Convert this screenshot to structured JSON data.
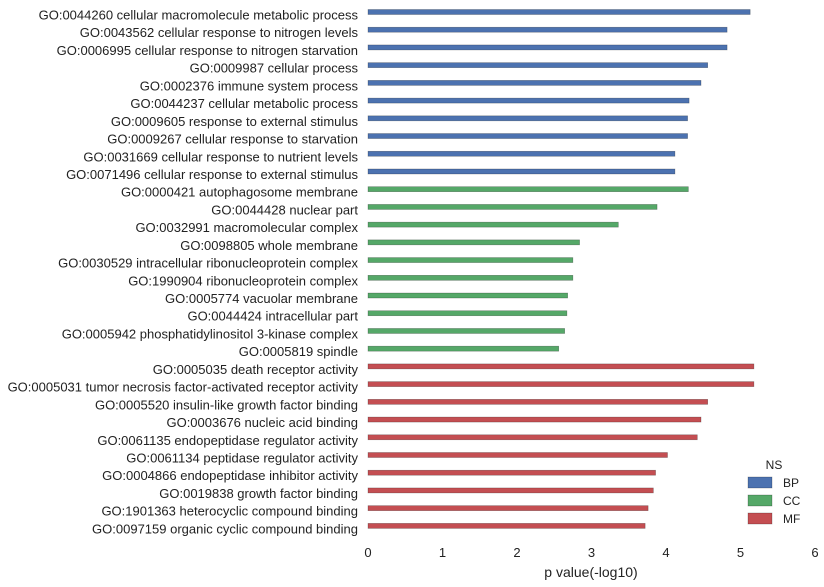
{
  "chart_data": {
    "type": "bar",
    "orientation": "horizontal",
    "xlabel": "p value(-log10)",
    "xlim": [
      0,
      6
    ],
    "xticks": [
      "0",
      "1",
      "2",
      "3",
      "4",
      "5",
      "6"
    ],
    "grid": false,
    "legend": {
      "title": "NS",
      "position": "bottom-right",
      "entries": [
        {
          "name": "BP",
          "color": "#4c72b0"
        },
        {
          "name": "CC",
          "color": "#55a868"
        },
        {
          "name": "MF",
          "color": "#c44e52"
        }
      ]
    },
    "categories": [
      "GO:0044260 cellular macromolecule metabolic process",
      "GO:0043562 cellular response to nitrogen levels",
      "GO:0006995 cellular response to nitrogen starvation",
      "GO:0009987 cellular process",
      "GO:0002376 immune system process",
      "GO:0044237 cellular metabolic process",
      "GO:0009605 response to external stimulus",
      "GO:0009267 cellular response to starvation",
      "GO:0031669 cellular response to nutrient levels",
      "GO:0071496 cellular response to external stimulus",
      "GO:0000421 autophagosome membrane",
      "GO:0044428 nuclear part",
      "GO:0032991 macromolecular complex",
      "GO:0098805 whole membrane",
      "GO:0030529 intracellular ribonucleoprotein complex",
      "GO:1990904 ribonucleoprotein complex",
      "GO:0005774 vacuolar membrane",
      "GO:0044424 intracellular part",
      "GO:0005942 phosphatidylinositol 3-kinase complex",
      "GO:0005819 spindle",
      "GO:0005035 death receptor activity",
      "GO:0005031 tumor necrosis factor-activated receptor activity",
      "GO:0005520 insulin-like growth factor binding",
      "GO:0003676 nucleic acid binding",
      "GO:0061135 endopeptidase regulator activity",
      "GO:0061134 peptidase regulator activity",
      "GO:0004866 endopeptidase inhibitor activity",
      "GO:0019838 growth factor binding",
      "GO:1901363 heterocyclic compound binding",
      "GO:0097159 organic cyclic compound binding"
    ],
    "values": [
      5.13,
      4.82,
      4.82,
      4.56,
      4.47,
      4.31,
      4.29,
      4.29,
      4.12,
      4.12,
      4.3,
      3.88,
      3.36,
      2.84,
      2.75,
      2.75,
      2.68,
      2.67,
      2.64,
      2.56,
      5.18,
      5.18,
      4.56,
      4.47,
      4.42,
      4.02,
      3.86,
      3.83,
      3.76,
      3.72
    ],
    "groups": [
      "BP",
      "BP",
      "BP",
      "BP",
      "BP",
      "BP",
      "BP",
      "BP",
      "BP",
      "BP",
      "CC",
      "CC",
      "CC",
      "CC",
      "CC",
      "CC",
      "CC",
      "CC",
      "CC",
      "CC",
      "MF",
      "MF",
      "MF",
      "MF",
      "MF",
      "MF",
      "MF",
      "MF",
      "MF",
      "MF"
    ]
  }
}
